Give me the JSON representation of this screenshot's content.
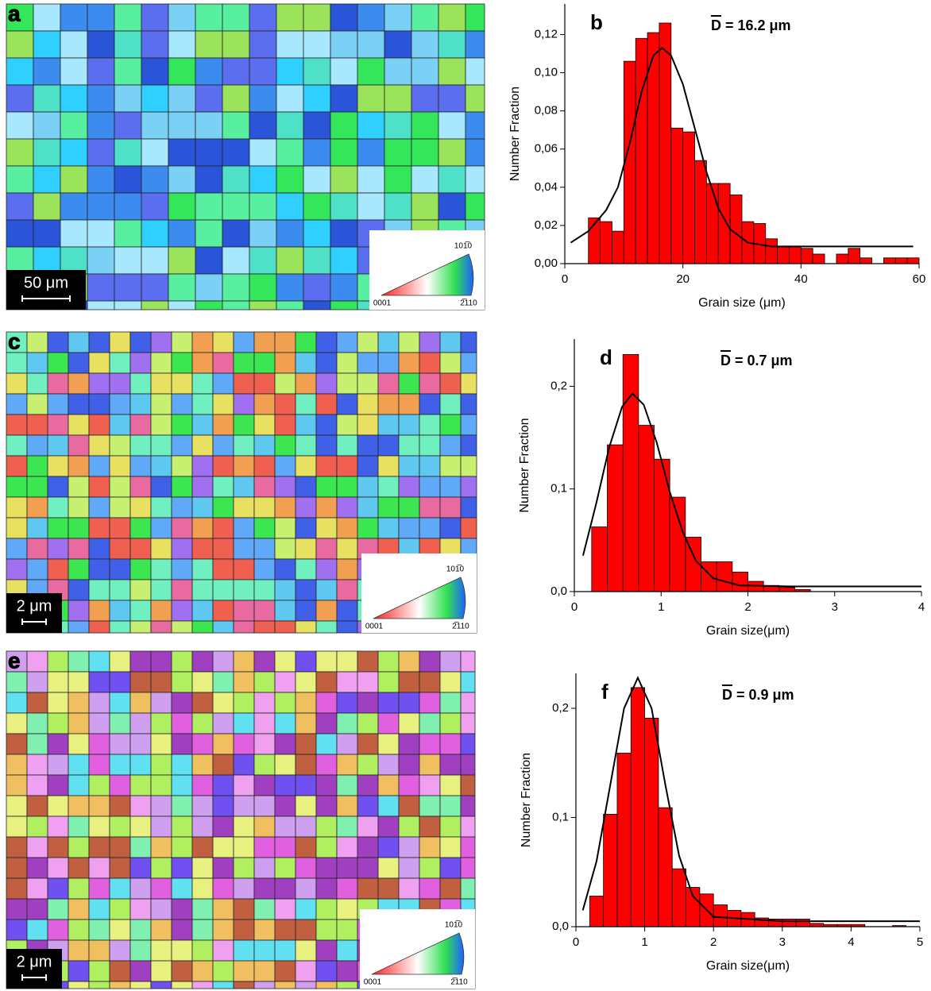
{
  "chart_data": [
    {
      "type": "histogram",
      "label": "b",
      "annotation": "D = 16.2 μm",
      "xlabel": "Grain size (μm)",
      "ylabel": "Number Fraction",
      "color": "#ff0000",
      "bins": [
        4,
        6,
        8,
        10,
        12,
        14,
        16,
        18,
        20,
        22,
        24,
        26,
        28,
        30,
        32,
        34,
        36,
        38,
        40,
        42,
        44,
        46,
        48,
        50,
        52,
        54,
        56,
        58,
        60
      ],
      "values": [
        0.024,
        0.022,
        0.017,
        0.106,
        0.118,
        0.121,
        0.126,
        0.071,
        0.069,
        0.054,
        0.042,
        0.042,
        0.036,
        0.022,
        0.021,
        0.013,
        0.009,
        0.009,
        0.008,
        0.005,
        0,
        0.005,
        0.008,
        0.003,
        0,
        0.003,
        0.003,
        0.003
      ],
      "fit": {
        "color": "#000000",
        "x": [
          1,
          4,
          7,
          9,
          11,
          13,
          15,
          16.5,
          18,
          20,
          22,
          24,
          26,
          28,
          31,
          35,
          45,
          59
        ],
        "values": [
          0.011,
          0.017,
          0.028,
          0.04,
          0.063,
          0.09,
          0.109,
          0.113,
          0.109,
          0.094,
          0.071,
          0.048,
          0.029,
          0.018,
          0.011,
          0.009,
          0.009,
          0.009
        ]
      },
      "xlim": [
        0,
        60
      ],
      "ylim": [
        0,
        0.136
      ],
      "xticks": [
        0,
        20,
        40,
        60
      ],
      "yticks": [
        {
          "value": 0,
          "label": "0,00"
        },
        {
          "value": 0.02,
          "label": "0,02"
        },
        {
          "value": 0.04,
          "label": "0,04"
        },
        {
          "value": 0.06,
          "label": "0,06"
        },
        {
          "value": 0.08,
          "label": "0,08"
        },
        {
          "value": 0.1,
          "label": "0,10"
        },
        {
          "value": 0.12,
          "label": "0,12"
        }
      ]
    },
    {
      "type": "histogram",
      "label": "d",
      "annotation": "D = 0.7 μm",
      "xlabel": "Grain size(μm)",
      "ylabel": "Number Fraction",
      "color": "#ff0000",
      "bins": [
        0.2,
        0.38,
        0.56,
        0.74,
        0.92,
        1.1,
        1.28,
        1.46,
        1.64,
        1.82,
        2.0,
        2.18,
        2.36,
        2.54,
        2.72
      ],
      "values": [
        0.063,
        0.143,
        0.231,
        0.162,
        0.129,
        0.092,
        0.053,
        0.029,
        0.029,
        0.019,
        0.01,
        0.006,
        0.004,
        0.002
      ],
      "fit": {
        "color": "#000000",
        "x": [
          0.1,
          0.25,
          0.4,
          0.55,
          0.67,
          0.8,
          0.95,
          1.1,
          1.25,
          1.4,
          1.6,
          1.9,
          2.5,
          4
        ],
        "values": [
          0.035,
          0.085,
          0.14,
          0.18,
          0.193,
          0.182,
          0.145,
          0.097,
          0.058,
          0.03,
          0.013,
          0.006,
          0.005,
          0.005
        ]
      },
      "xlim": [
        0,
        4
      ],
      "ylim": [
        0,
        0.246
      ],
      "xticks": [
        0,
        1,
        2,
        3,
        4
      ],
      "yticks": [
        {
          "value": 0,
          "label": "0,0"
        },
        {
          "value": 0.1,
          "label": "0,1"
        },
        {
          "value": 0.2,
          "label": "0,2"
        }
      ]
    },
    {
      "type": "histogram",
      "label": "f",
      "annotation": "D = 0.9 μm",
      "xlabel": "Grain size(μm)",
      "ylabel": "Number Fraction",
      "color": "#ff0000",
      "bins": [
        0.2,
        0.4,
        0.6,
        0.8,
        1.0,
        1.2,
        1.4,
        1.6,
        1.8,
        2.0,
        2.2,
        2.4,
        2.6,
        2.8,
        3.0,
        3.2,
        3.4,
        3.6,
        3.8,
        4.0,
        4.2,
        4.4,
        4.6,
        4.8,
        5.0
      ],
      "values": [
        0.028,
        0.103,
        0.159,
        0.219,
        0.191,
        0.109,
        0.053,
        0.036,
        0.03,
        0.02,
        0.015,
        0.013,
        0.008,
        0.007,
        0.007,
        0.007,
        0.003,
        0.002,
        0.002,
        0.002,
        0,
        0,
        0.001,
        0
      ],
      "fit": {
        "color": "#000000",
        "x": [
          0.1,
          0.3,
          0.5,
          0.7,
          0.9,
          1.1,
          1.3,
          1.5,
          1.7,
          2.0,
          3,
          5
        ],
        "values": [
          0.015,
          0.06,
          0.13,
          0.2,
          0.228,
          0.2,
          0.13,
          0.065,
          0.028,
          0.009,
          0.005,
          0.005
        ]
      },
      "xlim": [
        0,
        5
      ],
      "ylim": [
        0,
        0.232
      ],
      "xticks": [
        0,
        1,
        2,
        3,
        4,
        5
      ],
      "yticks": [
        {
          "value": 0,
          "label": "0,0"
        },
        {
          "value": 0.1,
          "label": "0,1"
        },
        {
          "value": 0.2,
          "label": "0,2"
        }
      ]
    }
  ],
  "maps": [
    {
      "label": "a",
      "scale_bar": "50 μm",
      "ipf": [
        "101̅0",
        "0001",
        "2̅110"
      ]
    },
    {
      "label": "c",
      "scale_bar": "2 μm",
      "ipf": [
        "101̅0",
        "0001",
        "2̅110"
      ]
    },
    {
      "label": "e",
      "scale_bar": "2 μm",
      "ipf": [
        "101̅0",
        "0001",
        "2̅110"
      ]
    }
  ]
}
